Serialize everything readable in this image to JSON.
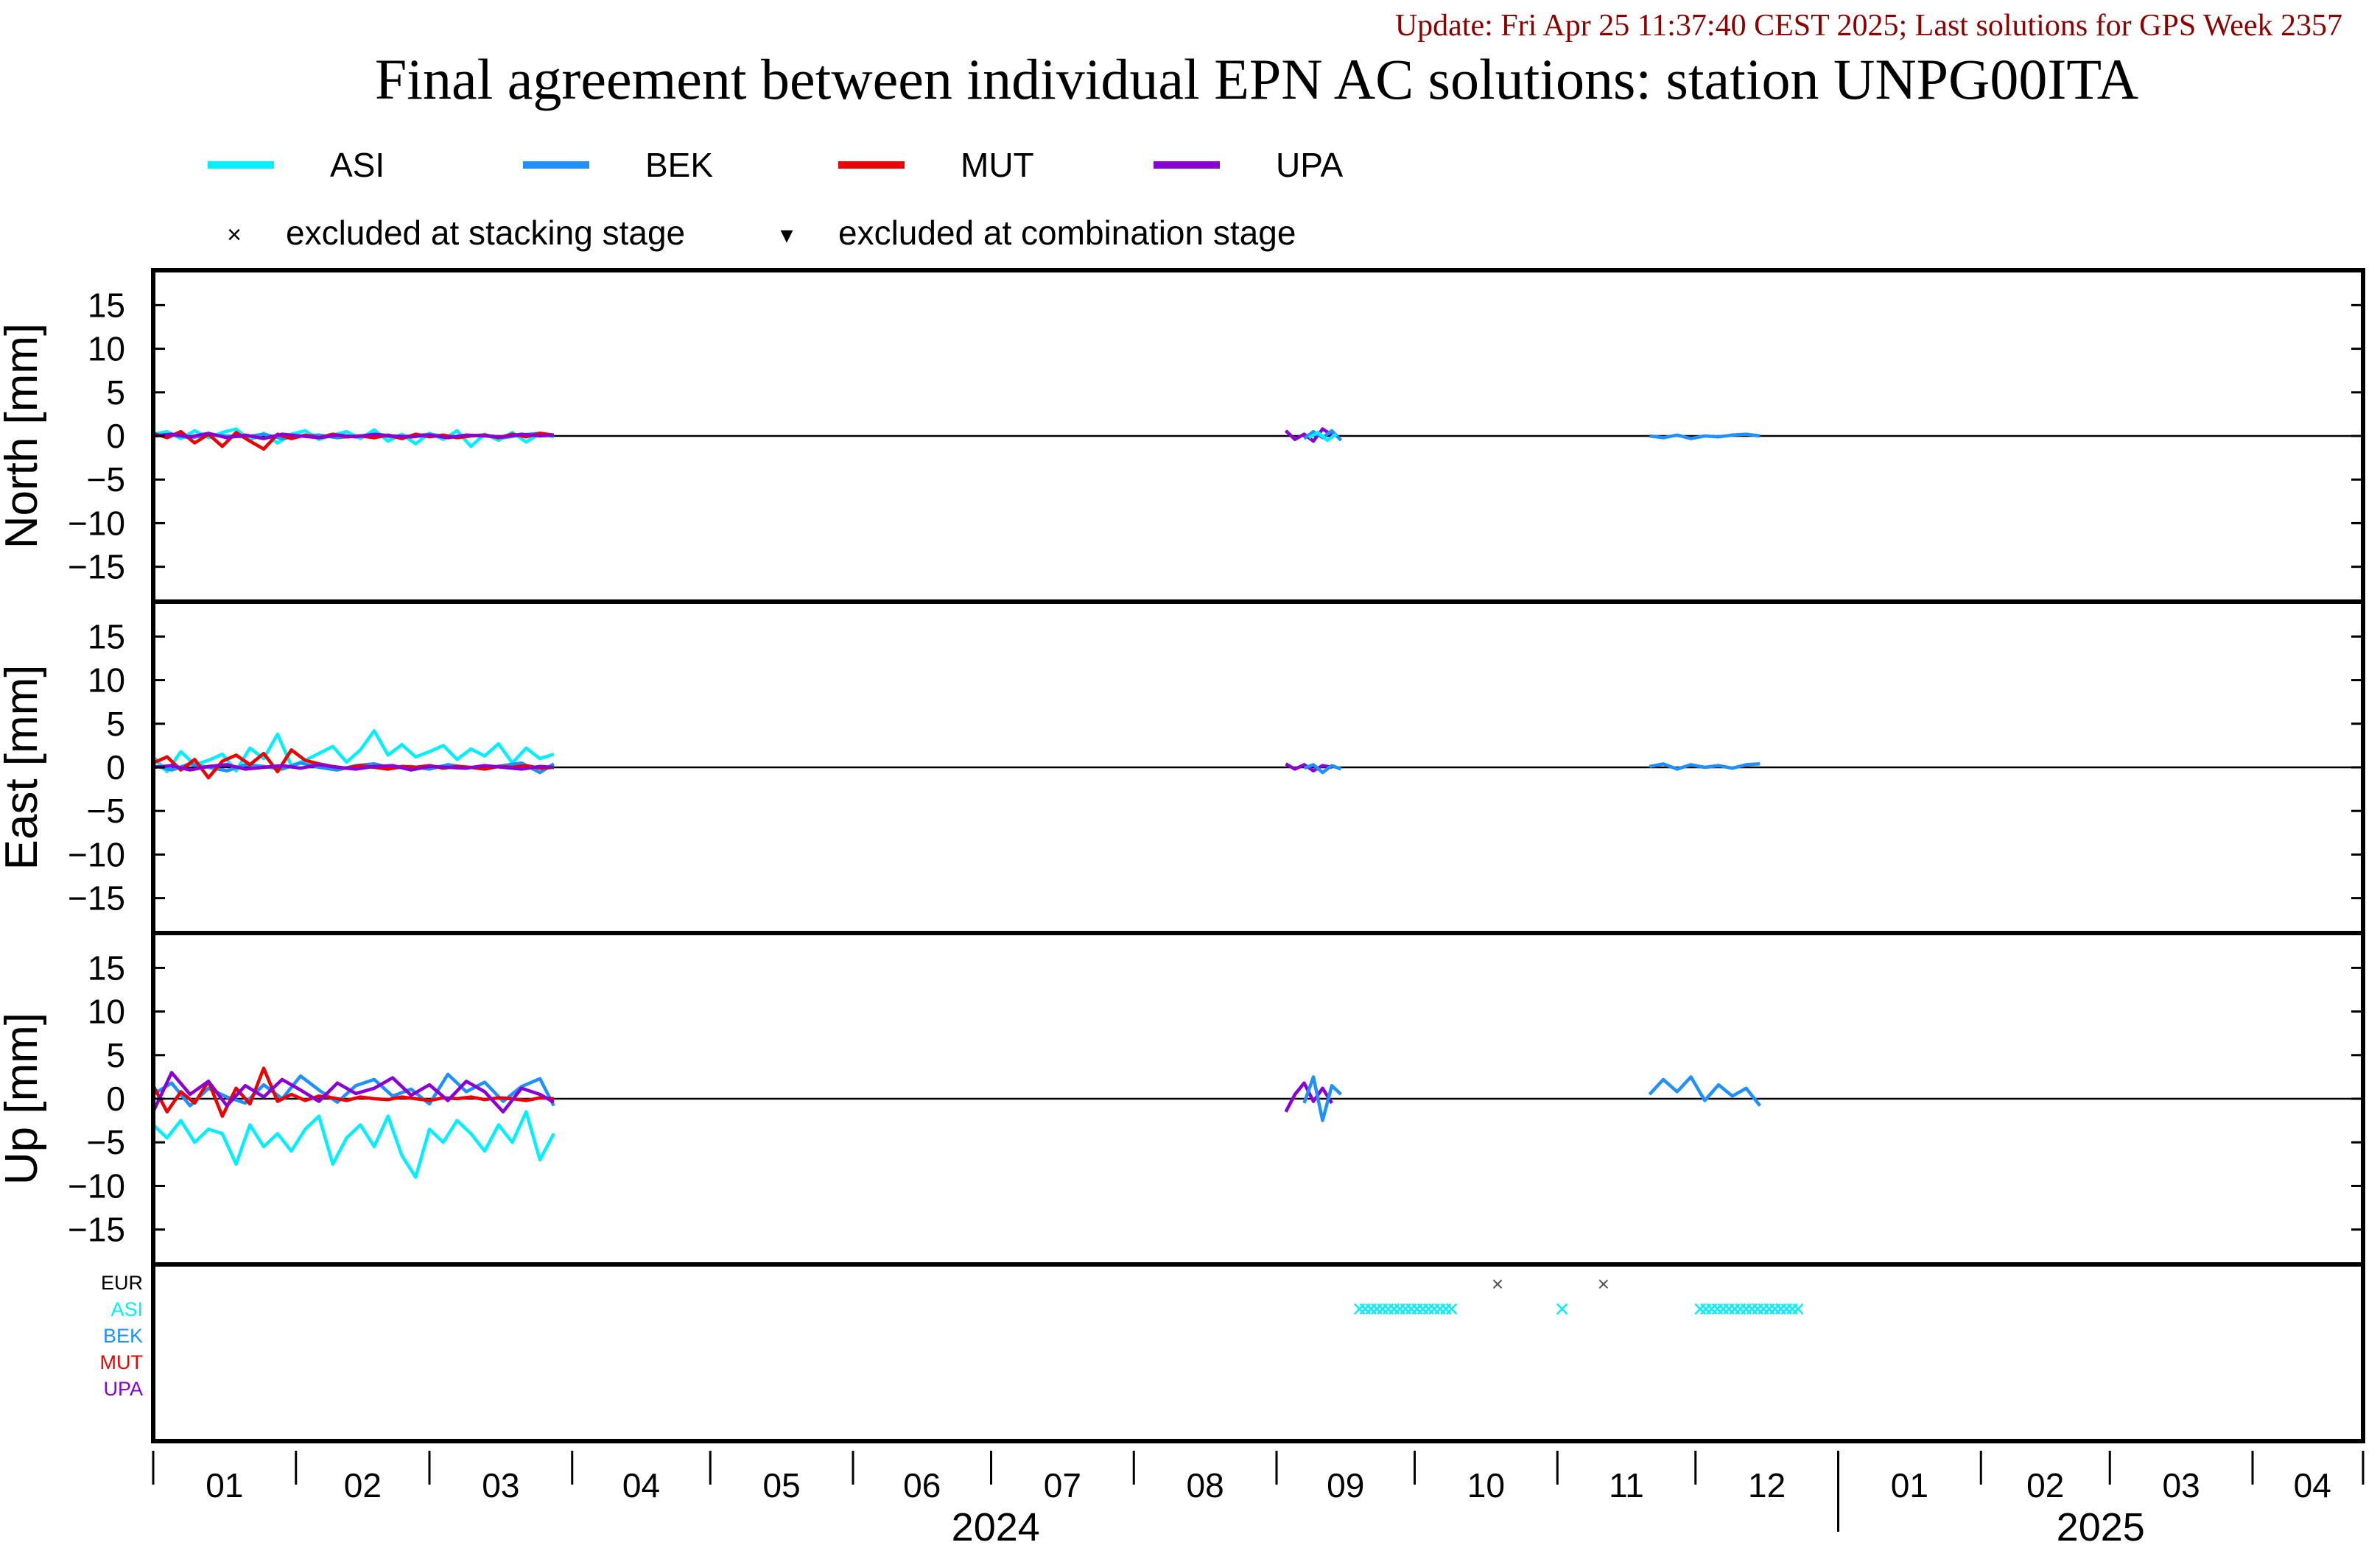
{
  "header": {
    "update_text": "Update: Fri Apr 25 11:37:40 CEST 2025; Last solutions for GPS Week 2357",
    "title": "Final agreement between individual EPN AC solutions: station UNPG00ITA"
  },
  "colors": {
    "ASI": "#00f0ff",
    "BEK": "#1e90ff",
    "MUT": "#ee0000",
    "UPA": "#8a00d4",
    "EUR": "#000000",
    "update_text": "#8b0000"
  },
  "legend": {
    "series": [
      {
        "name": "ASI",
        "color": "#00f0ff"
      },
      {
        "name": "BEK",
        "color": "#1e90ff"
      },
      {
        "name": "MUT",
        "color": "#ee0000"
      },
      {
        "name": "UPA",
        "color": "#8a00d4"
      }
    ],
    "markers": [
      {
        "symbol": "×",
        "label": "excluded at stacking stage"
      },
      {
        "symbol": "▾",
        "label": "excluded at combination stage"
      }
    ]
  },
  "chart_data": {
    "type": "line",
    "x_unit": "day of year 2024 (Jan 1 = 0)",
    "xlim": [
      0,
      480
    ],
    "month_ticks": [
      "01",
      "02",
      "03",
      "04",
      "05",
      "06",
      "07",
      "08",
      "09",
      "10",
      "11",
      "12",
      "01",
      "02",
      "03",
      "04"
    ],
    "year_labels": [
      "2024",
      "2025"
    ],
    "panels": [
      {
        "key": "north",
        "ylabel": "North [mm]",
        "ylim": [
          -19,
          19
        ],
        "yticks": [
          15,
          10,
          5,
          0,
          -5,
          -10,
          -15
        ],
        "series": [
          {
            "name": "ASI",
            "x": [
              0,
              3,
              6,
              9,
              12,
              15,
              18,
              21,
              24,
              27,
              30,
              33,
              36,
              39,
              42,
              45,
              48,
              51,
              54,
              57,
              60,
              63,
              66,
              69,
              72,
              75,
              78,
              81,
              84,
              87
            ],
            "y": [
              0.2,
              0.5,
              -0.3,
              0.6,
              -0.2,
              0.4,
              0.8,
              -0.5,
              0.3,
              -0.8,
              0.2,
              0.6,
              -0.4,
              0.1,
              0.5,
              -0.3,
              0.7,
              -0.6,
              0.2,
              -0.9,
              0.3,
              -0.4,
              0.6,
              -1.2,
              0.2,
              -0.5,
              0.4,
              -0.7,
              0.3,
              -0.1
            ]
          },
          {
            "name": "BEK",
            "x": [
              0,
              4,
              8,
              12,
              16,
              20,
              24,
              28,
              32,
              36,
              40,
              44,
              48,
              52,
              56,
              60,
              64,
              68,
              72,
              76,
              80,
              84,
              87
            ],
            "y": [
              0,
              0.1,
              -0.2,
              0.1,
              0,
              -0.1,
              0.2,
              -0.3,
              0,
              0.1,
              -0.2,
              0,
              0.1,
              -0.1,
              0,
              0.2,
              -0.1,
              0,
              0.1,
              -0.2,
              0.1,
              0.3,
              0
            ]
          },
          {
            "name": "MUT",
            "x": [
              0,
              3,
              6,
              9,
              12,
              15,
              18,
              21,
              24,
              27,
              30,
              33,
              36,
              39,
              42,
              45,
              48,
              51,
              54,
              57,
              60,
              63,
              66,
              69,
              72,
              75,
              78,
              81,
              84,
              87
            ],
            "y": [
              0.3,
              -0.2,
              0.5,
              -0.8,
              0.2,
              -1.2,
              0.4,
              -0.6,
              -1.5,
              0.2,
              -0.3,
              0.1,
              -0.2,
              0.2,
              -0.1,
              0,
              -0.2,
              0.1,
              -0.3,
              0.2,
              -0.1,
              0.1,
              -0.2,
              0,
              0.1,
              -0.2,
              0.2,
              -0.1,
              0.3,
              0.1
            ]
          },
          {
            "name": "UPA",
            "x": [
              0,
              4,
              8,
              12,
              16,
              20,
              24,
              28,
              32,
              36,
              40,
              44,
              48,
              52,
              56,
              60,
              64,
              68,
              72,
              76,
              80,
              84,
              87
            ],
            "y": [
              0,
              0.2,
              -0.1,
              0.3,
              -0.2,
              0.1,
              -0.3,
              0.2,
              0,
              -0.2,
              0.1,
              -0.1,
              0.2,
              0,
              -0.1,
              0.1,
              -0.2,
              0.1,
              0,
              -0.1,
              0.2,
              0,
              0.1
            ]
          },
          {
            "name": "UPA",
            "x": [
              246,
              248,
              250,
              252,
              254,
              256
            ],
            "y": [
              0.6,
              -0.4,
              0.2,
              -0.6,
              0.8,
              0.1
            ]
          },
          {
            "name": "BEK",
            "x": [
              250,
              252,
              254,
              256,
              258
            ],
            "y": [
              -0.3,
              0.5,
              -0.2,
              0.6,
              -0.5
            ]
          },
          {
            "name": "ASI",
            "x": [
              251,
              253,
              255,
              257
            ],
            "y": [
              -0.2,
              0.4,
              -0.5,
              0.2
            ]
          },
          {
            "name": "BEK",
            "x": [
              325,
              328,
              331,
              334,
              337,
              340,
              343,
              346,
              349
            ],
            "y": [
              0,
              -0.2,
              0.1,
              -0.3,
              0,
              -0.1,
              0.1,
              0.2,
              0
            ]
          }
        ]
      },
      {
        "key": "east",
        "ylabel": "East [mm]",
        "ylim": [
          -19,
          19
        ],
        "yticks": [
          15,
          10,
          5,
          0,
          -5,
          -10,
          -15
        ],
        "series": [
          {
            "name": "ASI",
            "x": [
              0,
              3,
              6,
              9,
              12,
              15,
              18,
              21,
              24,
              27,
              30,
              33,
              36,
              39,
              42,
              45,
              48,
              51,
              54,
              57,
              60,
              63,
              66,
              69,
              72,
              75,
              78,
              81,
              84,
              87
            ],
            "y": [
              1.2,
              -0.5,
              1.8,
              0.3,
              0.8,
              1.5,
              -0.4,
              2.2,
              1.0,
              3.8,
              0.2,
              0.8,
              1.6,
              2.4,
              0.6,
              2.0,
              4.2,
              1.4,
              2.6,
              1.2,
              1.8,
              2.5,
              0.9,
              2.1,
              1.3,
              2.7,
              0.5,
              2.2,
              1.0,
              1.5
            ]
          },
          {
            "name": "BEK",
            "x": [
              0,
              4,
              8,
              12,
              16,
              20,
              24,
              28,
              32,
              36,
              40,
              44,
              48,
              52,
              56,
              60,
              64,
              68,
              72,
              76,
              80,
              84,
              87
            ],
            "y": [
              0.2,
              -0.3,
              0.4,
              0,
              -0.4,
              0.3,
              0.1,
              -0.2,
              0.5,
              0,
              -0.3,
              0.2,
              0.4,
              -0.1,
              0.1,
              -0.2,
              0.3,
              0,
              -0.1,
              0.2,
              0.5,
              -0.6,
              0.4
            ]
          },
          {
            "name": "MUT",
            "x": [
              0,
              3,
              6,
              9,
              12,
              15,
              18,
              21,
              24,
              27,
              30,
              33,
              36,
              39,
              42,
              45,
              48,
              51,
              54,
              57,
              60,
              63,
              66,
              69,
              72,
              75,
              78,
              81,
              84,
              87
            ],
            "y": [
              0.5,
              1.2,
              -0.3,
              0.9,
              -1.2,
              0.7,
              1.4,
              0.3,
              1.6,
              -0.5,
              2.0,
              0.8,
              0.4,
              0.1,
              -0.1,
              0.2,
              0,
              -0.2,
              0.1,
              0,
              0.2,
              -0.1,
              0.1,
              0,
              -0.2,
              0.1,
              0,
              0.2,
              -0.1,
              0
            ]
          },
          {
            "name": "UPA",
            "x": [
              0,
              4,
              8,
              12,
              16,
              20,
              24,
              28,
              32,
              36,
              40,
              44,
              48,
              52,
              56,
              60,
              64,
              68,
              72,
              76,
              80,
              84,
              87
            ],
            "y": [
              0,
              0.2,
              -0.3,
              0.1,
              0.3,
              -0.2,
              0,
              0.2,
              -0.1,
              0.3,
              0,
              -0.2,
              0.1,
              0.2,
              -0.3,
              0.1,
              0,
              -0.1,
              0.2,
              0,
              -0.2,
              0.1,
              0
            ]
          },
          {
            "name": "UPA",
            "x": [
              246,
              248,
              250,
              252,
              254,
              256
            ],
            "y": [
              0.4,
              -0.2,
              0.3,
              -0.4,
              0.2,
              0
            ]
          },
          {
            "name": "BEK",
            "x": [
              250,
              252,
              254,
              256,
              258
            ],
            "y": [
              -0.1,
              0.3,
              -0.6,
              0.2,
              -0.2
            ]
          },
          {
            "name": "BEK",
            "x": [
              325,
              328,
              331,
              334,
              337,
              340,
              343,
              346,
              349
            ],
            "y": [
              0.1,
              0.4,
              -0.2,
              0.3,
              0,
              0.2,
              -0.1,
              0.3,
              0.4
            ]
          }
        ]
      },
      {
        "key": "up",
        "ylabel": "Up [mm]",
        "ylim": [
          -19,
          19
        ],
        "yticks": [
          15,
          10,
          5,
          0,
          -5,
          -10,
          -15
        ],
        "series": [
          {
            "name": "ASI",
            "x": [
              0,
              3,
              6,
              9,
              12,
              15,
              18,
              21,
              24,
              27,
              30,
              33,
              36,
              39,
              42,
              45,
              48,
              51,
              54,
              57,
              60,
              63,
              66,
              69,
              72,
              75,
              78,
              81,
              84,
              87
            ],
            "y": [
              -3,
              -4.5,
              -2.5,
              -5,
              -3.5,
              -4,
              -7.5,
              -3,
              -5.5,
              -4,
              -6,
              -3.5,
              -2,
              -7.5,
              -4.5,
              -3,
              -5.5,
              -2,
              -6.5,
              -9,
              -3.5,
              -5,
              -2.5,
              -4,
              -6,
              -3,
              -5,
              -1.5,
              -7,
              -4
            ]
          },
          {
            "name": "BEK",
            "x": [
              0,
              4,
              8,
              12,
              16,
              20,
              24,
              28,
              32,
              36,
              40,
              44,
              48,
              52,
              56,
              60,
              64,
              68,
              72,
              76,
              80,
              84,
              87
            ],
            "y": [
              0.5,
              1.8,
              -0.8,
              1.2,
              0.2,
              -0.5,
              1.6,
              0,
              2.6,
              1.0,
              -0.4,
              1.5,
              2.2,
              0.3,
              1.1,
              -0.6,
              2.8,
              0.8,
              1.9,
              -0.3,
              1.4,
              2.3,
              -0.8
            ]
          },
          {
            "name": "MUT",
            "x": [
              0,
              3,
              6,
              9,
              12,
              15,
              18,
              21,
              24,
              27,
              30,
              33,
              36,
              39,
              42,
              45,
              48,
              51,
              54,
              57,
              60,
              63,
              66,
              69,
              72,
              75,
              78,
              81,
              84,
              87
            ],
            "y": [
              1.5,
              -1.5,
              0.8,
              -0.5,
              2.0,
              -2.0,
              1.2,
              -0.6,
              3.5,
              -0.3,
              0.5,
              -0.2,
              0.3,
              0.1,
              -0.2,
              0.2,
              0,
              -0.1,
              0.2,
              0,
              -0.2,
              0.1,
              0,
              0.2,
              -0.1,
              0.1,
              0,
              -0.2,
              0.1,
              0
            ]
          },
          {
            "name": "UPA",
            "x": [
              0,
              4,
              8,
              12,
              16,
              20,
              24,
              28,
              32,
              36,
              40,
              44,
              48,
              52,
              56,
              60,
              64,
              68,
              72,
              76,
              80,
              84,
              87
            ],
            "y": [
              -1.5,
              3.0,
              0.5,
              2.0,
              -0.8,
              1.5,
              0.2,
              2.2,
              1.0,
              -0.3,
              1.8,
              0.6,
              1.2,
              2.4,
              0.4,
              1.6,
              -0.2,
              2.0,
              0.8,
              -1.5,
              1.2,
              0.5,
              -0.4
            ]
          },
          {
            "name": "UPA",
            "x": [
              246,
              248,
              250,
              252,
              254,
              256
            ],
            "y": [
              -1.5,
              0.5,
              1.8,
              -0.3,
              1.2,
              -0.5
            ]
          },
          {
            "name": "BEK",
            "x": [
              250,
              252,
              254,
              256,
              258
            ],
            "y": [
              -0.5,
              2.5,
              -2.5,
              1.5,
              0.5
            ]
          },
          {
            "name": "BEK",
            "x": [
              325,
              328,
              331,
              334,
              337,
              340,
              343,
              346,
              349
            ],
            "y": [
              0.5,
              2.2,
              0.8,
              2.5,
              -0.2,
              1.6,
              0.3,
              1.2,
              -0.8
            ]
          }
        ]
      }
    ],
    "exclusion_panel": {
      "rows": [
        "EUR",
        "ASI",
        "BEK",
        "MUT",
        "UPA"
      ],
      "markers": [
        {
          "row": "EUR",
          "x": 292,
          "symbol": "×"
        },
        {
          "row": "EUR",
          "x": 315,
          "symbol": "×"
        },
        {
          "row": "ASI",
          "x": 306,
          "symbol": "×"
        },
        {
          "row": "ASI",
          "x_start": 262,
          "x_end": 283,
          "symbol": "×"
        },
        {
          "row": "ASI",
          "x_start": 336,
          "x_end": 358,
          "symbol": "×"
        }
      ]
    }
  }
}
